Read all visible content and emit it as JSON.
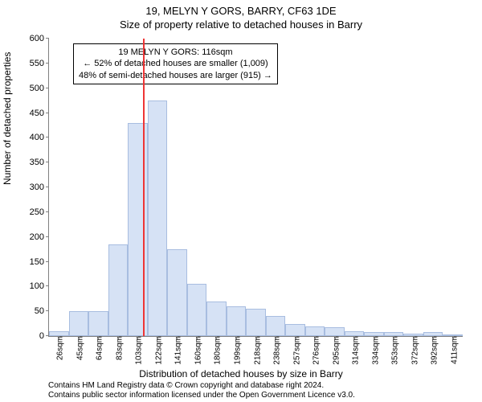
{
  "supertitle": "19, MELYN Y GORS, BARRY, CF63 1DE",
  "title": "Size of property relative to detached houses in Barry",
  "ylabel": "Number of detached properties",
  "xlabel": "Distribution of detached houses by size in Barry",
  "footer_line1": "Contains HM Land Registry data © Crown copyright and database right 2024.",
  "footer_line2": "Contains public sector information licensed under the Open Government Licence v3.0.",
  "chart": {
    "type": "bar",
    "background_color": "#ffffff",
    "axis_color": "#808080",
    "bar_fill": "#d6e2f5",
    "bar_stroke": "#a8bde0",
    "bar_stroke_width": 1,
    "marker_color": "#ee3535",
    "ylim": [
      0,
      600
    ],
    "ytick_step": 50,
    "x_categories": [
      "26sqm",
      "45sqm",
      "64sqm",
      "83sqm",
      "103sqm",
      "122sqm",
      "141sqm",
      "160sqm",
      "180sqm",
      "199sqm",
      "218sqm",
      "238sqm",
      "257sqm",
      "276sqm",
      "295sqm",
      "314sqm",
      "334sqm",
      "353sqm",
      "372sqm",
      "392sqm",
      "411sqm"
    ],
    "values": [
      10,
      50,
      50,
      185,
      430,
      475,
      175,
      105,
      70,
      60,
      55,
      40,
      25,
      20,
      18,
      10,
      8,
      8,
      5,
      8,
      3
    ],
    "marker_x_value": 116,
    "x_min": 26,
    "x_max": 421,
    "annotation": {
      "line1": "19 MELYN Y GORS: 116sqm",
      "line2": "← 52% of detached houses are smaller (1,009)",
      "line3": "48% of semi-detached houses are larger (915) →"
    },
    "tick_fontsize": 11,
    "label_fontsize": 12,
    "title_fontsize": 13
  }
}
